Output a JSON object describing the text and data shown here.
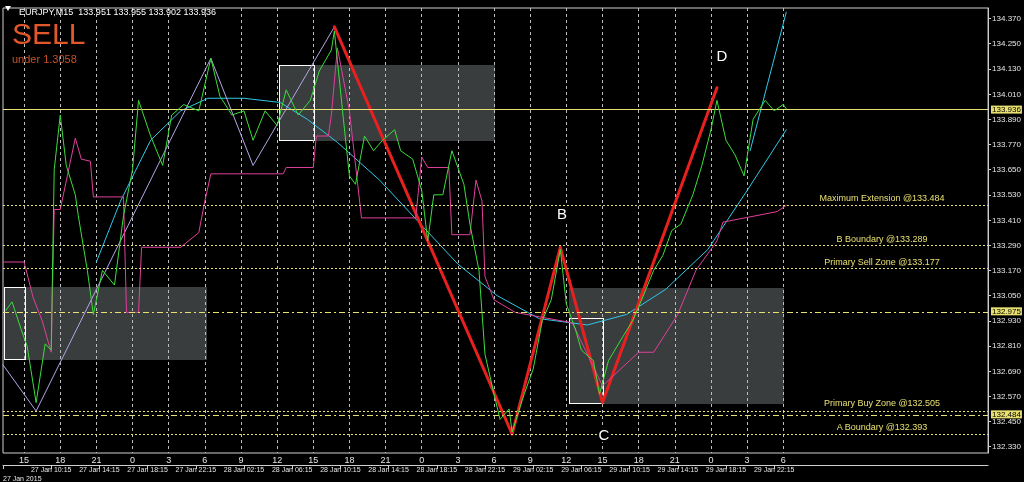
{
  "chart_data": {
    "type": "line",
    "title": "EURJPY,M15  133.951 133.955 133.902 133.936",
    "xlim": [
      "2015-01-27T06:15",
      "2015-01-30T16:00"
    ],
    "xticks": [
      {
        "value": "2015-01-27T06:15",
        "label": null
      },
      {
        "value": "2015-01-27T10:15",
        "label": "27 Jan 10:15"
      },
      {
        "value": "2015-01-27T14:15",
        "label": "27 Jan 14:15"
      },
      {
        "value": "2015-01-27T18:15",
        "label": "27 Jan 18:15"
      },
      {
        "value": "2015-01-27T22:15",
        "label": "27 Jan 22:15"
      },
      {
        "value": "2015-01-28T02:15",
        "label": "28 Jan 02:15"
      },
      {
        "value": "2015-01-28T06:15",
        "label": "28 Jan 06:15"
      },
      {
        "value": "2015-01-28T10:15",
        "label": "28 Jan 10:15"
      },
      {
        "value": "2015-01-28T14:15",
        "label": "28 Jan 14:15"
      },
      {
        "value": "2015-01-28T18:15",
        "label": "28 Jan 18:15"
      },
      {
        "value": "2015-01-28T22:15",
        "label": "28 Jan 22:15"
      },
      {
        "value": "2015-01-29T02:15",
        "label": "29 Jan 02:15"
      },
      {
        "value": "2015-01-29T06:15",
        "label": "29 Jan 06:15"
      },
      {
        "value": "2015-01-29T10:15",
        "label": "29 Jan 10:15"
      },
      {
        "value": "2015-01-29T14:15",
        "label": "29 Jan 14:15"
      },
      {
        "value": "2015-01-29T18:15",
        "label": "29 Jan 18:15"
      },
      {
        "value": "2015-01-29T22:15",
        "label": "29 Jan 22:15"
      }
    ],
    "x2lim": [
      "2015-01-27T06:15",
      "2015-01-30T16:00"
    ],
    "x2ticks": [
      {
        "value": "2015-01-27T08:00",
        "label": "15"
      },
      {
        "value": "2015-01-27T11:00",
        "label": "18"
      },
      {
        "value": "2015-01-27T14:00",
        "label": "21"
      },
      {
        "value": "2015-01-27T17:00",
        "label": "0"
      },
      {
        "value": "2015-01-27T20:00",
        "label": "3"
      },
      {
        "value": "2015-01-27T23:00",
        "label": "6"
      },
      {
        "value": "2015-01-28T02:00",
        "label": "9"
      },
      {
        "value": "2015-01-28T05:00",
        "label": "12"
      },
      {
        "value": "2015-01-28T08:00",
        "label": "15"
      },
      {
        "value": "2015-01-28T11:00",
        "label": "18"
      },
      {
        "value": "2015-01-28T14:00",
        "label": "21"
      },
      {
        "value": "2015-01-28T17:00",
        "label": "0"
      },
      {
        "value": "2015-01-28T20:00",
        "label": "3"
      },
      {
        "value": "2015-01-28T23:00",
        "label": "6"
      },
      {
        "value": "2015-01-29T02:00",
        "label": "9"
      },
      {
        "value": "2015-01-29T05:00",
        "label": "12"
      },
      {
        "value": "2015-01-29T08:00",
        "label": "15"
      },
      {
        "value": "2015-01-29T11:00",
        "label": "18"
      },
      {
        "value": "2015-01-29T14:00",
        "label": "21"
      },
      {
        "value": "2015-01-29T17:00",
        "label": "0"
      },
      {
        "value": "2015-01-29T20:00",
        "label": "3"
      },
      {
        "value": "2015-01-29T23:00",
        "label": "6"
      }
    ],
    "ylim": [
      132.3,
      134.42
    ],
    "yticks": [
      {
        "value": 134.37,
        "label": "134.370"
      },
      {
        "value": 134.25,
        "label": "134.250"
      },
      {
        "value": 134.13,
        "label": "134.130"
      },
      {
        "value": 134.01,
        "label": "134.010"
      },
      {
        "value": 133.89,
        "label": "133.890"
      },
      {
        "value": 133.77,
        "label": "133.770"
      },
      {
        "value": 133.65,
        "label": "133.650"
      },
      {
        "value": 133.53,
        "label": "133.530"
      },
      {
        "value": 133.41,
        "label": "133.410"
      },
      {
        "value": 133.29,
        "label": "133.290"
      },
      {
        "value": 133.17,
        "label": "133.170"
      },
      {
        "value": 133.05,
        "label": "133.050"
      },
      {
        "value": 132.93,
        "label": "132.930"
      },
      {
        "value": 132.81,
        "label": "132.810"
      },
      {
        "value": 132.69,
        "label": "132.690"
      },
      {
        "value": 132.57,
        "label": "132.570"
      },
      {
        "value": 132.45,
        "label": "132.450"
      },
      {
        "value": 132.33,
        "label": "132.330"
      }
    ],
    "grid": "x",
    "series": [
      {
        "color": "#3cdc3c",
        "x": [
          "2015-01-27T06:30",
          "2015-01-27T07:00",
          "2015-01-27T07:45",
          "2015-01-27T08:15",
          "2015-01-27T09:00",
          "2015-01-27T09:45",
          "2015-01-27T10:15",
          "2015-01-27T10:30",
          "2015-01-27T11:00",
          "2015-01-27T11:30",
          "2015-01-27T12:15",
          "2015-01-27T12:30",
          "2015-01-27T13:15",
          "2015-01-27T13:45",
          "2015-01-27T14:30",
          "2015-01-27T15:30",
          "2015-01-27T16:15",
          "2015-01-27T17:00",
          "2015-01-27T17:30",
          "2015-01-27T18:30",
          "2015-01-27T19:30",
          "2015-01-27T20:15",
          "2015-01-27T21:15",
          "2015-01-27T22:30",
          "2015-01-27T23:30",
          "2015-01-28T00:15",
          "2015-01-28T01:15",
          "2015-01-28T02:15",
          "2015-01-28T03:00",
          "2015-01-28T04:00",
          "2015-01-28T05:00",
          "2015-01-28T05:45",
          "2015-01-28T06:45",
          "2015-01-28T07:45",
          "2015-01-28T08:30",
          "2015-01-28T09:30",
          "2015-01-28T09:45",
          "2015-01-28T10:00",
          "2015-01-28T10:30",
          "2015-01-28T11:00",
          "2015-01-28T11:30",
          "2015-01-28T12:15",
          "2015-01-28T13:00",
          "2015-01-28T13:45",
          "2015-01-28T14:45",
          "2015-01-28T15:15",
          "2015-01-28T16:15",
          "2015-01-28T17:00",
          "2015-01-28T17:30",
          "2015-01-28T18:00",
          "2015-01-28T18:45",
          "2015-01-28T19:30",
          "2015-01-28T20:30",
          "2015-01-28T21:00",
          "2015-01-28T21:45",
          "2015-01-28T22:15",
          "2015-01-28T23:00",
          "2015-01-28T23:30",
          "2015-01-29T00:15",
          "2015-01-29T00:30",
          "2015-01-29T01:30",
          "2015-01-29T02:15",
          "2015-01-29T03:00",
          "2015-01-29T03:45",
          "2015-01-29T04:30",
          "2015-01-29T05:00",
          "2015-01-29T05:45",
          "2015-01-29T06:15",
          "2015-01-29T07:15",
          "2015-01-29T07:45",
          "2015-01-29T08:30",
          "2015-01-29T09:45",
          "2015-01-29T10:30",
          "2015-01-29T11:15",
          "2015-01-29T12:15",
          "2015-01-29T13:00",
          "2015-01-29T13:45",
          "2015-01-29T14:30",
          "2015-01-29T15:30",
          "2015-01-29T16:15",
          "2015-01-29T17:00",
          "2015-01-29T17:30",
          "2015-01-29T18:15",
          "2015-01-29T19:00",
          "2015-01-29T19:45",
          "2015-01-29T20:30",
          "2015-01-29T21:30",
          "2015-01-29T22:15",
          "2015-01-29T23:00",
          "2015-01-29T23:15"
        ],
        "values": [
          132.98,
          133.02,
          132.89,
          132.81,
          132.54,
          132.82,
          132.79,
          133.65,
          133.91,
          133.67,
          133.53,
          133.43,
          133.17,
          132.96,
          133.17,
          133.1,
          133.43,
          133.65,
          133.98,
          133.81,
          133.67,
          133.91,
          133.96,
          133.93,
          134.18,
          134.0,
          133.91,
          133.93,
          133.79,
          133.93,
          133.86,
          134.03,
          133.91,
          133.98,
          134.12,
          134.22,
          134.31,
          134.17,
          133.89,
          133.62,
          133.58,
          133.81,
          133.74,
          133.79,
          133.84,
          133.74,
          133.7,
          133.55,
          133.31,
          133.53,
          133.53,
          133.74,
          133.58,
          133.39,
          133.17,
          132.77,
          132.58,
          132.46,
          132.51,
          132.4,
          132.58,
          132.7,
          132.93,
          133.03,
          133.27,
          133.01,
          132.89,
          132.79,
          132.74,
          132.58,
          132.74,
          132.86,
          132.93,
          133.03,
          133.17,
          133.24,
          133.36,
          133.39,
          133.53,
          133.67,
          133.84,
          133.98,
          133.79,
          133.72,
          133.62,
          133.89,
          133.98,
          133.93,
          133.96,
          133.94
        ]
      },
      {
        "color": "#e0409c",
        "x": [
          "2015-01-27T06:15",
          "2015-01-27T08:00",
          "2015-01-27T08:45",
          "2015-01-27T09:30",
          "2015-01-27T10:15",
          "2015-01-27T10:30",
          "2015-01-27T11:00",
          "2015-01-27T12:15",
          "2015-01-27T12:45",
          "2015-01-27T13:30",
          "2015-01-27T13:45",
          "2015-01-27T16:15",
          "2015-01-27T16:30",
          "2015-01-27T17:30",
          "2015-01-27T17:45",
          "2015-01-27T21:00",
          "2015-01-27T22:30",
          "2015-01-27T23:00",
          "2015-01-27T23:30",
          "2015-01-28T05:30",
          "2015-01-28T05:45",
          "2015-01-28T08:00",
          "2015-01-28T08:15",
          "2015-01-28T09:15",
          "2015-01-28T09:30",
          "2015-01-28T10:00",
          "2015-01-28T11:00",
          "2015-01-28T12:00",
          "2015-01-28T16:30",
          "2015-01-28T17:00",
          "2015-01-28T17:30",
          "2015-01-28T19:15",
          "2015-01-28T19:30",
          "2015-01-28T21:00",
          "2015-01-28T21:30",
          "2015-01-28T22:00",
          "2015-01-28T22:15",
          "2015-01-28T23:00",
          "2015-01-29T00:45",
          "2015-01-29T05:30",
          "2015-01-29T08:00",
          "2015-01-29T11:00",
          "2015-01-29T12:15",
          "2015-01-29T14:15",
          "2015-01-29T15:45",
          "2015-01-29T17:30",
          "2015-01-29T18:00",
          "2015-01-29T22:30",
          "2015-01-29T23:15"
        ],
        "values": [
          133.21,
          133.21,
          133.04,
          132.93,
          132.78,
          133.46,
          133.46,
          133.8,
          133.7,
          133.69,
          133.52,
          133.52,
          132.97,
          132.97,
          133.28,
          133.28,
          133.35,
          133.5,
          133.63,
          133.63,
          133.66,
          133.66,
          133.81,
          133.81,
          133.91,
          134.23,
          133.93,
          133.42,
          133.42,
          133.71,
          133.66,
          133.66,
          133.34,
          133.34,
          133.6,
          133.5,
          133.14,
          133.03,
          132.97,
          132.92,
          132.62,
          132.78,
          132.78,
          132.96,
          133.17,
          133.31,
          133.4,
          133.45,
          133.48
        ]
      },
      {
        "color": "#30c8e8",
        "x": [
          "2015-01-27T14:00",
          "2015-01-27T16:00",
          "2015-01-27T18:30",
          "2015-01-27T21:00",
          "2015-01-27T23:15",
          "2015-01-28T02:15",
          "2015-01-28T05:15",
          "2015-01-28T07:30",
          "2015-01-28T10:00",
          "2015-01-28T13:30",
          "2015-01-28T16:45",
          "2015-01-28T20:00",
          "2015-01-28T23:15",
          "2015-01-29T02:45",
          "2015-01-29T06:45",
          "2015-01-29T10:00",
          "2015-01-29T13:15",
          "2015-01-29T16:45",
          "2015-01-29T20:00",
          "2015-01-29T23:15"
        ],
        "values": [
          133.21,
          133.5,
          133.79,
          133.93,
          133.99,
          133.99,
          133.97,
          133.89,
          133.78,
          133.6,
          133.4,
          133.2,
          133.05,
          132.94,
          132.91,
          132.96,
          133.08,
          133.27,
          133.55,
          133.84
        ]
      },
      {
        "color": "#30c8e8",
        "x": [
          "2015-01-29T20:15",
          "2015-01-29T23:15"
        ],
        "values": [
          133.74,
          134.4
        ]
      },
      {
        "color": "#b4a4e8",
        "x": [
          "2015-01-27T06:15",
          "2015-01-27T09:00",
          "2015-01-27T23:30",
          "2015-01-28T03:00",
          "2015-01-28T09:45"
        ],
        "values": [
          132.72,
          132.5,
          134.18,
          133.67,
          134.33
        ]
      },
      {
        "color": "#e82020",
        "x": [
          "2015-01-28T09:45",
          "2015-01-29T00:30",
          "2015-01-29T04:30",
          "2015-01-29T08:00",
          "2015-01-29T17:30"
        ],
        "values": [
          134.33,
          132.39,
          133.28,
          132.54,
          134.04
        ]
      }
    ],
    "ref_lines": [
      {
        "axis": "y",
        "value": 133.936,
        "label": "133.936",
        "color": "#e8e070",
        "line_style": "solid"
      },
      {
        "axis": "y",
        "value": 132.975,
        "label": "132.975",
        "color": "#e8e070",
        "line_style": "dashed"
      },
      {
        "axis": "y",
        "value": 132.484,
        "label": "132.484",
        "color": "#e8e070",
        "line_style": "dashed"
      },
      {
        "axis": "y",
        "value": 133.484,
        "label": "Maximum Extension @133.484",
        "color": "#e8e070",
        "line_style": "dotted"
      },
      {
        "axis": "y",
        "value": 133.289,
        "label": "B Boundary @133.289",
        "color": "#e8e070",
        "line_style": "dotted"
      },
      {
        "axis": "y",
        "value": 133.177,
        "label": "Primary Sell Zone @133.177",
        "color": "#e8e070",
        "line_style": "dotted"
      },
      {
        "axis": "y",
        "value": 132.505,
        "label": "Primary Buy Zone @132.505",
        "color": "#e8e070",
        "line_style": "dotted"
      },
      {
        "axis": "y",
        "value": 132.393,
        "label": "A Boundary @132.393",
        "color": "#e8e070",
        "line_style": "dotted"
      }
    ],
    "annotations": [
      "SELL",
      "under 1.3058",
      "B",
      "C",
      "D",
      "27 Jan 2015"
    ]
  }
}
